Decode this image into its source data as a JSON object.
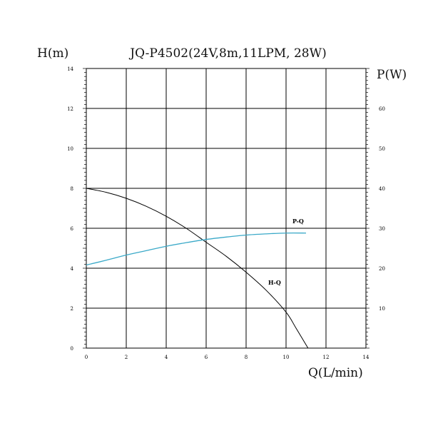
{
  "chart_data": {
    "type": "line",
    "title": "JQ-P4502(24V,8m,11LPM, 28W)",
    "xlabel": "Q(L/min)",
    "ylabel_left": "H(m)",
    "ylabel_right": "P(W)",
    "xlim": [
      0,
      14
    ],
    "ylim_left": [
      0,
      14
    ],
    "ylim_right": [
      0,
      70
    ],
    "x_ticks": [
      "0",
      "2",
      "4",
      "6",
      "8",
      "10",
      "12",
      "14"
    ],
    "y_left_ticks": [
      "0",
      "2",
      "4",
      "6",
      "8",
      "10",
      "12",
      "14"
    ],
    "y_right_ticks": [
      "10",
      "20",
      "30",
      "40",
      "50",
      "60"
    ],
    "grid": true,
    "series": [
      {
        "name": "H-Q",
        "axis": "left",
        "color": "#000000",
        "x": [
          0,
          1,
          2,
          3,
          4,
          5,
          6,
          7,
          8,
          9,
          10,
          10.5,
          11.1
        ],
        "y": [
          8.0,
          7.8,
          7.5,
          7.1,
          6.6,
          6.0,
          5.3,
          4.6,
          3.8,
          2.9,
          1.8,
          1.0,
          0
        ]
      },
      {
        "name": "P-Q",
        "axis": "right",
        "color": "#3aa9c8",
        "x": [
          0,
          1,
          2,
          3,
          4,
          5,
          6,
          7,
          8,
          9,
          10,
          11
        ],
        "y": [
          20.8,
          22.0,
          23.3,
          24.4,
          25.5,
          26.4,
          27.2,
          27.8,
          28.3,
          28.6,
          28.8,
          28.8
        ]
      }
    ]
  }
}
